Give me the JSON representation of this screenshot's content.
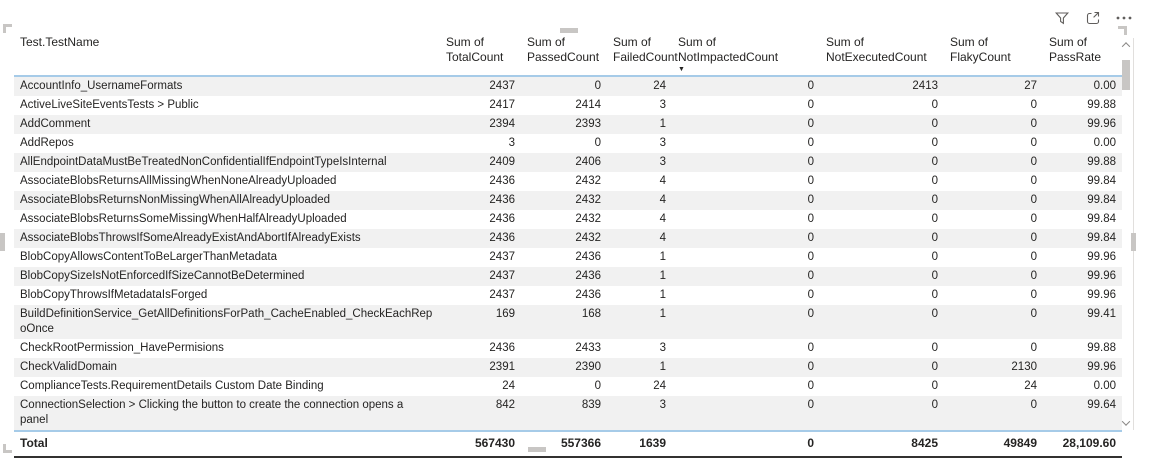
{
  "visual_header": {
    "icons": [
      {
        "name": "filter-icon",
        "title": "Filters"
      },
      {
        "name": "focus-mode-icon",
        "title": "Focus mode"
      },
      {
        "name": "more-options-icon",
        "title": "More options"
      }
    ]
  },
  "table": {
    "sort_indicator_glyph": "▼",
    "columns": [
      {
        "label": "Test.TestName",
        "align": "left"
      },
      {
        "label": "Sum of TotalCount",
        "align": "right"
      },
      {
        "label": "Sum of PassedCount",
        "align": "right"
      },
      {
        "label": "Sum of FailedCount",
        "align": "right"
      },
      {
        "label": "Sum of NotImpactedCount",
        "align": "right",
        "sort": "descending"
      },
      {
        "label": "Sum of NotExecutedCount",
        "align": "right"
      },
      {
        "label": "Sum of FlakyCount",
        "align": "right"
      },
      {
        "label": "Sum of PassRate",
        "align": "right"
      }
    ],
    "rows": [
      {
        "name": "AccountInfo_UsernameFormats",
        "values": [
          "2437",
          "0",
          "24",
          "0",
          "2413",
          "27",
          "0.00"
        ]
      },
      {
        "name": "ActiveLiveSiteEventsTests > Public",
        "values": [
          "2417",
          "2414",
          "3",
          "0",
          "0",
          "0",
          "99.88"
        ]
      },
      {
        "name": "AddComment",
        "values": [
          "2394",
          "2393",
          "1",
          "0",
          "0",
          "0",
          "99.96"
        ]
      },
      {
        "name": "AddRepos",
        "values": [
          "3",
          "0",
          "3",
          "0",
          "0",
          "0",
          "0.00"
        ]
      },
      {
        "name": "AllEndpointDataMustBeTreatedNonConfidentialIfEndpointTypeIsInternal",
        "values": [
          "2409",
          "2406",
          "3",
          "0",
          "0",
          "0",
          "99.88"
        ]
      },
      {
        "name": "AssociateBlobsReturnsAllMissingWhenNoneAlreadyUploaded",
        "values": [
          "2436",
          "2432",
          "4",
          "0",
          "0",
          "0",
          "99.84"
        ]
      },
      {
        "name": "AssociateBlobsReturnsNonMissingWhenAllAlreadyUploaded",
        "values": [
          "2436",
          "2432",
          "4",
          "0",
          "0",
          "0",
          "99.84"
        ]
      },
      {
        "name": "AssociateBlobsReturnsSomeMissingWhenHalfAlreadyUploaded",
        "values": [
          "2436",
          "2432",
          "4",
          "0",
          "0",
          "0",
          "99.84"
        ]
      },
      {
        "name": "AssociateBlobsThrowsIfSomeAlreadyExistAndAbortIfAlreadyExists",
        "values": [
          "2436",
          "2432",
          "4",
          "0",
          "0",
          "0",
          "99.84"
        ]
      },
      {
        "name": "BlobCopyAllowsContentToBeLargerThanMetadata",
        "values": [
          "2437",
          "2436",
          "1",
          "0",
          "0",
          "0",
          "99.96"
        ]
      },
      {
        "name": "BlobCopySizeIsNotEnforcedIfSizeCannotBeDetermined",
        "values": [
          "2437",
          "2436",
          "1",
          "0",
          "0",
          "0",
          "99.96"
        ]
      },
      {
        "name": "BlobCopyThrowsIfMetadataIsForged",
        "values": [
          "2437",
          "2436",
          "1",
          "0",
          "0",
          "0",
          "99.96"
        ]
      },
      {
        "name": "BuildDefinitionService_GetAllDefinitionsForPath_CacheEnabled_CheckEachRepoOnce",
        "values": [
          "169",
          "168",
          "1",
          "0",
          "0",
          "0",
          "99.41"
        ]
      },
      {
        "name": "CheckRootPermission_HavePermisions",
        "values": [
          "2436",
          "2433",
          "3",
          "0",
          "0",
          "0",
          "99.88"
        ]
      },
      {
        "name": "CheckValidDomain",
        "values": [
          "2391",
          "2390",
          "1",
          "0",
          "0",
          "2130",
          "99.96"
        ]
      },
      {
        "name": "ComplianceTests.RequirementDetails Custom Date Binding",
        "values": [
          "24",
          "0",
          "24",
          "0",
          "0",
          "24",
          "0.00"
        ]
      },
      {
        "name": "ConnectionSelection > Clicking the button to create the connection opens a panel",
        "values": [
          "842",
          "839",
          "3",
          "0",
          "0",
          "0",
          "99.64"
        ]
      }
    ],
    "total": {
      "label": "Total",
      "values": [
        "567430",
        "557366",
        "1639",
        "0",
        "8425",
        "49849",
        "28,109.60"
      ]
    }
  },
  "colors": {
    "text": "#252423",
    "row_alt_bg": "#f1f1f1",
    "header_separator": "#a6cbe8",
    "total_border": "#323130",
    "icon": "#605e5c",
    "handle": "#c8c6c4",
    "scroll_thumb": "#c8c6c4"
  }
}
